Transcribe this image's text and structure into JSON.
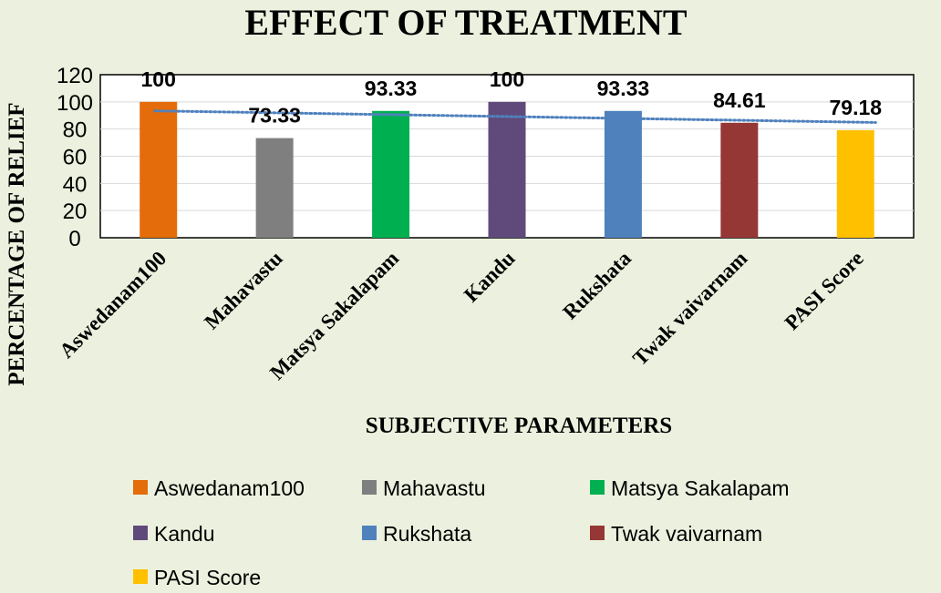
{
  "chart_data": {
    "type": "bar",
    "title": "EFFECT OF TREATMENT",
    "xlabel": "SUBJECTIVE PARAMETERS",
    "ylabel": "PERCENTAGE OF RELIEF",
    "ylim": [
      0,
      120
    ],
    "yticks": [
      0,
      20,
      40,
      60,
      80,
      100,
      120
    ],
    "grid": true,
    "categories": [
      "Aswedanam100",
      "Mahavastu",
      "Matsya Sakalapam",
      "Kandu",
      "Rukshata",
      "Twak vaivarnam",
      "PASI Score"
    ],
    "values": [
      100,
      73.33,
      93.33,
      100,
      93.33,
      84.61,
      79.18
    ],
    "data_labels": [
      "100",
      "73.33",
      "93.33",
      "100",
      "93.33",
      "84.61",
      "79.18"
    ],
    "colors": [
      "#e46c0a",
      "#7f7f7f",
      "#00b050",
      "#604a7b",
      "#4f81bd",
      "#953735",
      "#ffc000"
    ],
    "trendline": {
      "type": "linear",
      "color": "#4f81bd",
      "style": "dotted"
    },
    "legend": {
      "position": "bottom",
      "items": [
        "Aswedanam100",
        "Mahavastu",
        "Matsya Sakalapam",
        "Kandu",
        "Rukshata",
        "Twak vaivarnam",
        "PASI Score"
      ]
    }
  }
}
